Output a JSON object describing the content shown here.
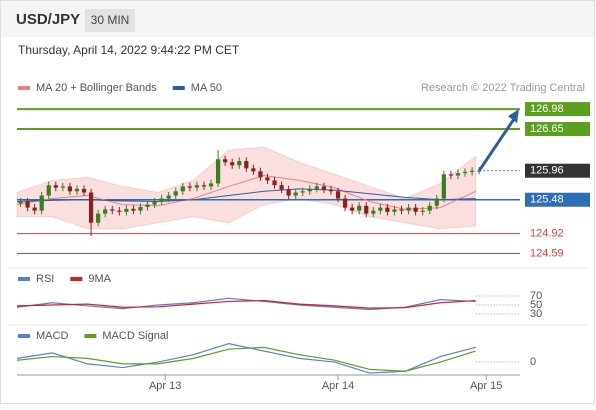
{
  "header": {
    "symbol": "USD/JPY",
    "interval": "30 MIN",
    "timestamp": "Thursday, April 14, 2022 9:44:22 PM CET"
  },
  "chart_data": [
    {
      "type": "candlestick",
      "credit": "Research © 2022 Trading Central",
      "xlim": [
        0,
        72
      ],
      "ylim": [
        124.45,
        127.13
      ],
      "up_color": "#3a7d22",
      "down_color": "#8a2020",
      "open": [
        125.42,
        125.45,
        125.35,
        125.3,
        125.55,
        125.72,
        125.68,
        125.7,
        125.62,
        125.66,
        125.6,
        125.1,
        125.25,
        125.32,
        125.3,
        125.28,
        125.33,
        125.3,
        125.36,
        125.4,
        125.45,
        125.5,
        125.55,
        125.62,
        125.7,
        125.68,
        125.72,
        125.7,
        125.75,
        126.15,
        126.1,
        126.05,
        126.12,
        126.0,
        125.95,
        125.85,
        125.8,
        125.72,
        125.65,
        125.55,
        125.6,
        125.62,
        125.66,
        125.7,
        125.65,
        125.62,
        125.5,
        125.35,
        125.3,
        125.38,
        125.25,
        125.3,
        125.35,
        125.28,
        125.32,
        125.3,
        125.35,
        125.28,
        125.3,
        125.38,
        125.5,
        125.9,
        125.88,
        125.92,
        125.94,
        125.96
      ],
      "high": [
        125.51,
        125.51,
        125.41,
        125.61,
        125.78,
        125.78,
        125.76,
        125.76,
        125.72,
        125.72,
        125.66,
        125.31,
        125.38,
        125.38,
        125.36,
        125.39,
        125.39,
        125.42,
        125.46,
        125.51,
        125.56,
        125.61,
        125.68,
        125.76,
        125.76,
        125.78,
        125.78,
        125.81,
        126.3,
        126.21,
        126.16,
        126.18,
        126.18,
        126.06,
        126.01,
        125.91,
        125.86,
        125.78,
        125.71,
        125.66,
        125.68,
        125.72,
        125.76,
        125.76,
        125.71,
        125.68,
        125.56,
        125.41,
        125.44,
        125.44,
        125.36,
        125.41,
        125.41,
        125.38,
        125.38,
        125.41,
        125.41,
        125.36,
        125.44,
        125.56,
        125.96,
        125.96,
        125.98,
        126.0,
        126.02,
        126.02
      ],
      "low": [
        125.36,
        125.29,
        125.24,
        125.24,
        125.49,
        125.62,
        125.62,
        125.56,
        125.56,
        125.54,
        124.88,
        125.04,
        125.19,
        125.24,
        125.22,
        125.22,
        125.24,
        125.24,
        125.3,
        125.34,
        125.39,
        125.44,
        125.49,
        125.56,
        125.62,
        125.62,
        125.64,
        125.64,
        125.69,
        126.04,
        125.99,
        125.99,
        125.94,
        125.89,
        125.79,
        125.74,
        125.66,
        125.59,
        125.49,
        125.49,
        125.54,
        125.56,
        125.6,
        125.59,
        125.56,
        125.44,
        125.29,
        125.24,
        125.24,
        125.19,
        125.19,
        125.24,
        125.22,
        125.22,
        125.24,
        125.24,
        125.22,
        125.22,
        125.24,
        125.32,
        125.44,
        125.82,
        125.82,
        125.86,
        125.88,
        125.9
      ],
      "close": [
        125.45,
        125.35,
        125.3,
        125.55,
        125.72,
        125.68,
        125.7,
        125.62,
        125.66,
        125.6,
        125.1,
        125.25,
        125.32,
        125.3,
        125.28,
        125.33,
        125.3,
        125.36,
        125.4,
        125.45,
        125.5,
        125.55,
        125.62,
        125.7,
        125.68,
        125.72,
        125.7,
        125.75,
        126.15,
        126.1,
        126.05,
        126.12,
        126.0,
        125.95,
        125.85,
        125.8,
        125.72,
        125.65,
        125.55,
        125.6,
        125.62,
        125.66,
        125.7,
        125.65,
        125.62,
        125.5,
        125.35,
        125.3,
        125.38,
        125.25,
        125.3,
        125.35,
        125.28,
        125.32,
        125.3,
        125.35,
        125.28,
        125.3,
        125.38,
        125.5,
        125.9,
        125.88,
        125.92,
        125.94,
        125.96,
        125.96
      ],
      "series": [
        {
          "name": "MA 20 + Bollinger Bands",
          "color": "#f08080",
          "x": [
            0,
            5,
            10,
            15,
            20,
            25,
            30,
            35,
            40,
            45,
            50,
            55,
            60,
            65
          ],
          "values": [
            125.4,
            125.5,
            125.55,
            125.4,
            125.38,
            125.5,
            125.7,
            125.88,
            125.8,
            125.68,
            125.45,
            125.32,
            125.35,
            125.62
          ],
          "upper": [
            125.6,
            125.8,
            125.85,
            125.7,
            125.6,
            125.8,
            126.3,
            126.35,
            126.1,
            125.9,
            125.7,
            125.5,
            125.75,
            126.2
          ],
          "lower": [
            125.2,
            125.2,
            125.0,
            125.0,
            125.1,
            125.2,
            125.1,
            125.4,
            125.5,
            125.4,
            125.2,
            125.1,
            125.0,
            125.05
          ]
        },
        {
          "name": "MA 50",
          "color": "#2f5e9e",
          "x": [
            0,
            5,
            10,
            15,
            20,
            25,
            30,
            35,
            40,
            45,
            50,
            55,
            60,
            65
          ],
          "values": [
            125.45,
            125.47,
            125.48,
            125.46,
            125.45,
            125.48,
            125.55,
            125.62,
            125.66,
            125.64,
            125.58,
            125.52,
            125.48,
            125.5
          ]
        }
      ],
      "resistance": [
        126.98,
        126.65
      ],
      "resistance_color": "#5aa01e",
      "last": 125.96,
      "last_color": "#333333",
      "pivot": 125.48,
      "pivot_color": "#2f6db5",
      "support": [
        124.92,
        124.59
      ],
      "support_color": "#e03c3c"
    },
    {
      "type": "line",
      "xlim": [
        0,
        72
      ],
      "ylim": [
        21,
        88
      ],
      "yticks": [
        70,
        50,
        30
      ],
      "series": [
        {
          "name": "RSI",
          "color": "#5b7fd6",
          "x": [
            0,
            5,
            10,
            15,
            20,
            25,
            30,
            35,
            40,
            45,
            50,
            55,
            60,
            65
          ],
          "values": [
            45,
            55,
            48,
            42,
            50,
            55,
            65,
            58,
            50,
            45,
            40,
            45,
            62,
            58
          ]
        },
        {
          "name": "9MA",
          "color": "#d62020",
          "x": [
            0,
            5,
            10,
            15,
            20,
            25,
            30,
            35,
            40,
            45,
            50,
            55,
            60,
            65
          ],
          "values": [
            48,
            50,
            52,
            45,
            46,
            52,
            58,
            60,
            52,
            48,
            43,
            44,
            55,
            60
          ]
        }
      ]
    },
    {
      "type": "line",
      "xlim": [
        0,
        72
      ],
      "ylim": [
        -0.065,
        0.12
      ],
      "yticks": [
        0
      ],
      "xticks": [
        {
          "value": 21,
          "label": "Apr 13"
        },
        {
          "value": 45.5,
          "label": "Apr 14"
        },
        {
          "value": 66.5,
          "label": "Apr 15"
        }
      ],
      "series": [
        {
          "name": "MACD",
          "color": "#5b7fd6",
          "x": [
            0,
            5,
            10,
            15,
            20,
            25,
            30,
            35,
            40,
            45,
            50,
            55,
            60,
            65
          ],
          "values": [
            0.02,
            0.05,
            -0.01,
            -0.03,
            0.0,
            0.04,
            0.1,
            0.06,
            0.02,
            0.0,
            -0.06,
            -0.05,
            0.03,
            0.08
          ]
        },
        {
          "name": "MACD Signal",
          "color": "#5aa01e",
          "x": [
            0,
            5,
            10,
            15,
            20,
            25,
            30,
            35,
            40,
            45,
            50,
            55,
            60,
            65
          ],
          "values": [
            0.01,
            0.03,
            0.02,
            -0.01,
            -0.01,
            0.02,
            0.07,
            0.08,
            0.04,
            0.01,
            -0.04,
            -0.05,
            0.0,
            0.06
          ]
        }
      ]
    }
  ]
}
